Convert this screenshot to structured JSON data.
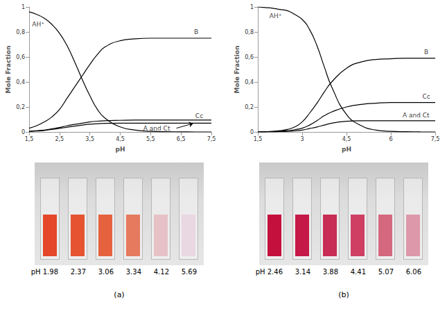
{
  "chart_data": [
    {
      "type": "line",
      "x_label": "pH",
      "y_label": "Mole Fraction",
      "x": [
        1.5,
        1.75,
        2,
        2.25,
        2.5,
        2.75,
        3,
        3.25,
        3.5,
        3.75,
        4,
        4.5,
        5,
        5.5,
        6,
        6.5,
        7,
        7.5
      ],
      "series": [
        {
          "name": "AH⁺",
          "color": "#000000",
          "line_style": "solid",
          "values": [
            0.96,
            0.94,
            0.91,
            0.86,
            0.79,
            0.69,
            0.56,
            0.42,
            0.29,
            0.18,
            0.11,
            0.04,
            0.015,
            0.005,
            0.002,
            0.001,
            0,
            0
          ]
        },
        {
          "name": "B",
          "color": "#000000",
          "line_style": "solid",
          "values": [
            0.03,
            0.05,
            0.08,
            0.12,
            0.18,
            0.27,
            0.36,
            0.45,
            0.54,
            0.62,
            0.68,
            0.73,
            0.745,
            0.75,
            0.75,
            0.75,
            0.75,
            0.75
          ]
        },
        {
          "name": "Cc",
          "color": "#000000",
          "line_style": "solid",
          "values": [
            0.005,
            0.01,
            0.015,
            0.025,
            0.035,
            0.05,
            0.06,
            0.07,
            0.08,
            0.086,
            0.09,
            0.093,
            0.095,
            0.095,
            0.095,
            0.095,
            0.095,
            0.095
          ]
        },
        {
          "name": "A and Ct",
          "color": "#000000",
          "line_style": "solid",
          "values": [
            0.004,
            0.007,
            0.012,
            0.02,
            0.028,
            0.038,
            0.047,
            0.055,
            0.062,
            0.066,
            0.069,
            0.07,
            0.07,
            0.07,
            0.07,
            0.07,
            0.07,
            0.07
          ]
        }
      ],
      "annotations": [
        {
          "text": "AH⁺",
          "x": 1.8,
          "y": 0.86
        },
        {
          "text": "B",
          "x": 7.0,
          "y": 0.8
        },
        {
          "text": "Cc",
          "x": 7.1,
          "y": 0.13
        },
        {
          "text": "A and Ct",
          "x": 5.7,
          "y": 0.03,
          "arrow": [
            [
              6.35,
              0.03
            ],
            [
              6.9,
              0.068
            ]
          ]
        }
      ],
      "xlim": [
        1.5,
        7.5
      ],
      "xticks": [
        {
          "value": 1.5,
          "label": "1,5"
        },
        {
          "value": 2.5,
          "label": "2,5"
        },
        {
          "value": 3.5,
          "label": "3,5"
        },
        {
          "value": 4.5,
          "label": "4,5"
        },
        {
          "value": 5.5,
          "label": "5,5"
        },
        {
          "value": 6.5,
          "label": "6,5"
        },
        {
          "value": 7.5,
          "label": "7,5"
        }
      ],
      "ylim": [
        0,
        1
      ],
      "yticks": [
        0,
        {
          "value": 0.2,
          "label": "0,2"
        },
        {
          "value": 0.4,
          "label": "0,4"
        },
        {
          "value": 0.6,
          "label": "0,6"
        },
        {
          "value": 0.8,
          "label": "0,8"
        },
        1
      ],
      "grid": false
    },
    {
      "type": "line",
      "x_label": "pH",
      "y_label": "Mole Fraction",
      "x": [
        1.5,
        1.75,
        2,
        2.25,
        2.5,
        2.75,
        3,
        3.25,
        3.5,
        3.75,
        4,
        4.5,
        5,
        5.5,
        6,
        6.5,
        7,
        7.5
      ],
      "series": [
        {
          "name": "AH⁺",
          "color": "#000000",
          "line_style": "solid",
          "values": [
            1,
            0.995,
            0.99,
            0.98,
            0.97,
            0.94,
            0.9,
            0.82,
            0.69,
            0.52,
            0.36,
            0.14,
            0.05,
            0.015,
            0.005,
            0.002,
            0.001,
            0
          ]
        },
        {
          "name": "B",
          "color": "#000000",
          "line_style": "solid",
          "values": [
            0,
            0.002,
            0.005,
            0.01,
            0.02,
            0.04,
            0.08,
            0.15,
            0.23,
            0.32,
            0.4,
            0.51,
            0.56,
            0.58,
            0.585,
            0.59,
            0.59,
            0.59
          ]
        },
        {
          "name": "Cc",
          "color": "#000000",
          "line_style": "solid",
          "values": [
            0,
            0.001,
            0.002,
            0.005,
            0.01,
            0.018,
            0.03,
            0.055,
            0.09,
            0.13,
            0.16,
            0.2,
            0.22,
            0.23,
            0.235,
            0.235,
            0.235,
            0.235
          ]
        },
        {
          "name": "A and Ct",
          "color": "#000000",
          "line_style": "solid",
          "values": [
            0,
            0.001,
            0.002,
            0.003,
            0.005,
            0.009,
            0.015,
            0.027,
            0.04,
            0.055,
            0.07,
            0.085,
            0.09,
            0.09,
            0.09,
            0.09,
            0.09,
            0.09
          ]
        }
      ],
      "annotations": [
        {
          "text": "AH⁺",
          "x": 2.1,
          "y": 0.93
        },
        {
          "text": "B",
          "x": 7.2,
          "y": 0.64
        },
        {
          "text": "Cc",
          "x": 7.2,
          "y": 0.285
        },
        {
          "text": "A and Ct",
          "x": 6.85,
          "y": 0.135
        }
      ],
      "xlim": [
        1.5,
        7.5
      ],
      "xticks": [
        {
          "value": 1.5,
          "label": "1,5"
        },
        3,
        {
          "value": 4.5,
          "label": "4,5"
        },
        6,
        {
          "value": 7.5,
          "label": "7,5"
        }
      ],
      "ylim": [
        0,
        1
      ],
      "yticks": [
        0,
        {
          "value": 0.2,
          "label": "0,2"
        },
        {
          "value": 0.4,
          "label": "0,4"
        },
        {
          "value": 0.6,
          "label": "0,6"
        },
        {
          "value": 0.8,
          "label": "0,8"
        },
        1
      ],
      "grid": false
    }
  ],
  "photos": [
    {
      "labels": [
        "pH 1.98",
        "2.37",
        "3.06",
        "3.34",
        "4.12",
        "5.69"
      ],
      "caption": "(a)"
    },
    {
      "labels": [
        "pH 2.46",
        "3.14",
        "3.88",
        "4.41",
        "5.07",
        "6.06"
      ],
      "caption": "(b)"
    }
  ]
}
